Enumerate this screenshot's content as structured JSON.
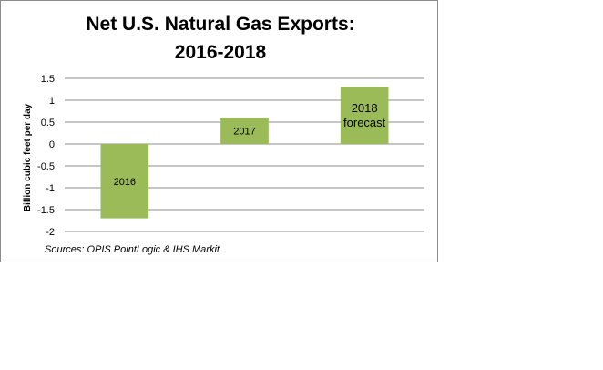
{
  "chart_data": {
    "type": "bar",
    "title_lines": [
      "Net U.S. Natural Gas Exports:",
      "2016-2018"
    ],
    "ylabel": "Billion  cubic  feet per day",
    "xlabel": "",
    "categories": [
      "2016",
      "2017",
      "2018 forecast"
    ],
    "values": [
      -1.7,
      0.6,
      1.3
    ],
    "bar_labels": [
      [
        "2016"
      ],
      [
        "2017"
      ],
      [
        "2018",
        "forecast"
      ]
    ],
    "ylim": [
      -2,
      1.5
    ],
    "yticks": [
      1.5,
      1,
      0.5,
      0,
      -0.5,
      -1,
      -1.5,
      -2
    ],
    "ytick_labels": [
      "1.5",
      "1",
      "0.5",
      "0",
      "-0.5",
      "-1",
      "-1.5",
      "-2"
    ],
    "grid": true,
    "bar_color": "#9bbb59",
    "source": "Sources:  OPIS PointLogic & IHS Markit"
  }
}
